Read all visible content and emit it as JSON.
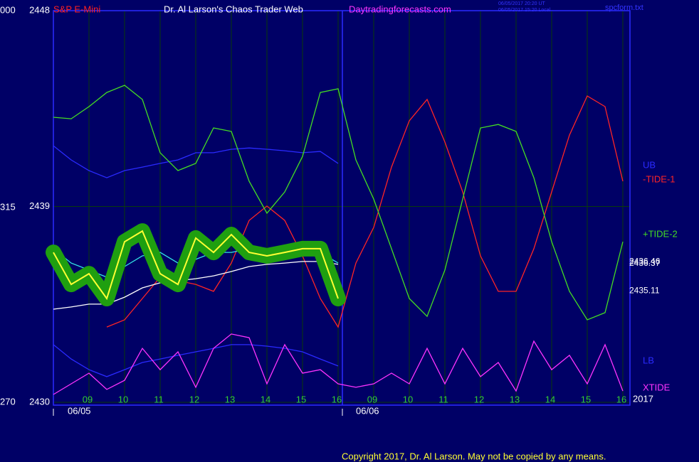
{
  "chart_data": {
    "type": "line",
    "instrument": "S&P E-Mini",
    "title": "Dr. Al Larson's Chaos Trader Web",
    "subtitle": "Daytradingforecasts.com",
    "timestamps": [
      "06/05/2017 20:20 UT",
      "06/05/2017 15:20 Local"
    ],
    "file": "spcform.txt",
    "copyright": "Copyright 2017, Dr. Al Larson. May not be copied by any means.",
    "dates": [
      "06/05",
      "06/06"
    ],
    "year": "2017",
    "left_labels": [
      "000",
      "315",
      "270"
    ],
    "last_values": [
      2436.46,
      2436.37,
      2435.11
    ],
    "x": [
      0,
      0.5,
      1,
      1.5,
      2,
      2.5,
      3,
      3.5,
      4,
      4.5,
      5,
      5.5,
      6,
      6.5,
      7,
      7.5,
      8,
      8.5,
      9,
      9.5,
      10,
      10.5,
      11,
      11.5,
      12,
      12.5,
      13,
      13.5,
      14,
      14.5,
      15,
      15.5,
      16
    ],
    "xlim": [
      0,
      16.2
    ],
    "xticks": [
      {
        "value": 1,
        "label": "09"
      },
      {
        "value": 2,
        "label": "10"
      },
      {
        "value": 3,
        "label": "11"
      },
      {
        "value": 4,
        "label": "12"
      },
      {
        "value": 5,
        "label": "13"
      },
      {
        "value": 6,
        "label": "14"
      },
      {
        "value": 7,
        "label": "15"
      },
      {
        "value": 8,
        "label": "16"
      },
      {
        "value": 9,
        "label": "09"
      },
      {
        "value": 10,
        "label": "10"
      },
      {
        "value": 11,
        "label": "11"
      },
      {
        "value": 12,
        "label": "12"
      },
      {
        "value": 13,
        "label": "13"
      },
      {
        "value": 14,
        "label": "14"
      },
      {
        "value": 15,
        "label": "15"
      },
      {
        "value": 16,
        "label": "16"
      }
    ],
    "ylim": [
      2430,
      2448
    ],
    "yticks": [
      2430,
      2439,
      2448
    ],
    "grid": true,
    "series": [
      {
        "name": "UB",
        "color": "#2a2aff",
        "values": [
          2441.79,
          2441.14,
          2440.65,
          2440.32,
          2440.65,
          2440.81,
          2440.98,
          2441.14,
          2441.47,
          2441.47,
          2441.63,
          2441.69,
          2441.63,
          2441.56,
          2441.47,
          2441.53,
          2440.98,
          null,
          null,
          null,
          null,
          null,
          null,
          null,
          null,
          null,
          null,
          null,
          null,
          null,
          null,
          null,
          null
        ]
      },
      {
        "name": "-TIDE-1",
        "color": "#ff2424",
        "values": [
          null,
          null,
          null,
          2433.46,
          2433.79,
          2434.77,
          2435.75,
          2435.59,
          2435.42,
          2435.1,
          2436.4,
          2438.36,
          2439.02,
          2438.36,
          2436.73,
          2434.77,
          2433.46,
          2436.4,
          2438.04,
          2440.81,
          2442.94,
          2443.92,
          2441.96,
          2439.67,
          2436.73,
          2435.1,
          2435.1,
          2437.06,
          2439.67,
          2442.28,
          2444.08,
          2443.59,
          2440.16
        ]
      },
      {
        "name": "+TIDE-2",
        "color": "#44dd22",
        "values": [
          2443.1,
          2443.03,
          2443.59,
          2444.24,
          2444.57,
          2443.92,
          2441.47,
          2440.65,
          2440.98,
          2442.61,
          2442.45,
          2440.16,
          2438.69,
          2439.67,
          2441.3,
          2444.24,
          2444.41,
          2441.14,
          2439.34,
          2437.06,
          2434.77,
          2433.95,
          2436.08,
          2439.34,
          2442.61,
          2442.77,
          2442.45,
          2440.32,
          2437.38,
          2435.1,
          2433.79,
          2434.12,
          2437.38
        ]
      },
      {
        "name": "LB",
        "color": "#2a2aff",
        "values": [
          2432.65,
          2431.99,
          2431.5,
          2431.18,
          2431.5,
          2431.83,
          2431.99,
          2432.16,
          2432.32,
          2432.48,
          2432.65,
          2432.65,
          2432.58,
          2432.48,
          2432.32,
          2431.99,
          2431.67,
          null,
          null,
          null,
          null,
          null,
          null,
          null,
          null,
          null,
          null,
          null,
          null,
          null,
          null,
          null,
          null
        ]
      },
      {
        "name": "XTIDE",
        "color": "#ff33ff",
        "values": [
          2430.36,
          2430.85,
          2431.34,
          2430.59,
          2431.01,
          2432.48,
          2431.5,
          2432.32,
          2430.69,
          2432.48,
          2433.14,
          2432.97,
          2430.85,
          2432.65,
          2431.34,
          2431.5,
          2430.85,
          2430.69,
          2430.85,
          2431.34,
          2430.85,
          2432.48,
          2430.85,
          2432.48,
          2431.18,
          2431.83,
          2430.52,
          2432.81,
          2431.5,
          2432.16,
          2430.85,
          2432.65,
          2430.52
        ]
      },
      {
        "color": "#ffffff",
        "values": [
          2434.28,
          2434.38,
          2434.51,
          2434.51,
          2434.83,
          2435.26,
          2435.49,
          2435.59,
          2435.68,
          2435.81,
          2436.01,
          2436.24,
          2436.34,
          2436.4,
          2436.47,
          2436.47,
          2436.34,
          null,
          null,
          null,
          null,
          null,
          null,
          null,
          null,
          null,
          null,
          null,
          null,
          null,
          null,
          null,
          null
        ]
      },
      {
        "color": "#33e6e6",
        "values": [
          2437.06,
          2436.4,
          2436.08,
          2435.75,
          2436.24,
          2436.73,
          2436.89,
          2436.4,
          2436.57,
          2436.89,
          2436.89,
          2437.06,
          2436.89,
          2436.89,
          2436.89,
          2436.89,
          2436.4,
          null,
          null,
          null,
          null,
          null,
          null,
          null,
          null,
          null,
          null,
          null,
          null,
          null,
          null,
          null,
          null
        ]
      },
      {
        "color": "#ffff33",
        "halo": "#1f9f10",
        "values": [
          2436.89,
          2435.42,
          2435.91,
          2434.77,
          2437.38,
          2437.87,
          2435.91,
          2435.42,
          2437.55,
          2436.89,
          2437.71,
          2436.89,
          2436.73,
          2436.89,
          2437.06,
          2437.06,
          2434.77,
          null,
          null,
          null,
          null,
          null,
          null,
          null,
          null,
          null,
          null,
          null,
          null,
          null,
          null,
          null,
          null
        ]
      }
    ]
  }
}
